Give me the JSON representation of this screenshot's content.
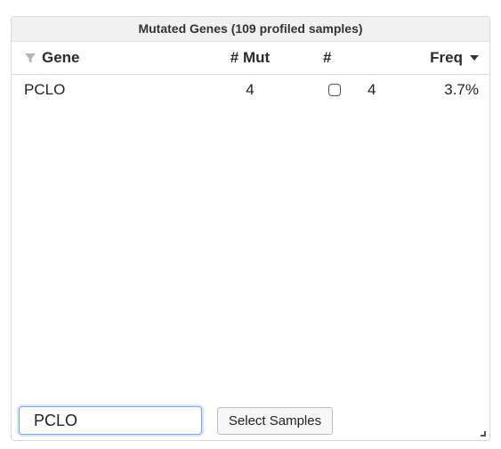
{
  "panel": {
    "title": "Mutated Genes (109 profiled samples)"
  },
  "table": {
    "columns": {
      "gene": "Gene",
      "mut": "# Mut",
      "num": "#",
      "freq": "Freq"
    },
    "sort": {
      "column": "freq",
      "direction": "descending"
    },
    "rows": [
      {
        "gene": "PCLO",
        "mut": "4",
        "count": "4",
        "freq": "3.7%",
        "checked": false
      }
    ]
  },
  "search": {
    "value": "PCLO"
  },
  "actions": {
    "select_samples_label": "Select Samples"
  },
  "icons": {
    "filter": "filter-icon",
    "sort": "sort-desc-icon",
    "resize": "resize-handle-icon"
  },
  "colors": {
    "header_bg": "#f1f1f1",
    "focus_border": "#7aa7e0",
    "filter_icon": "#b5b5b5"
  }
}
